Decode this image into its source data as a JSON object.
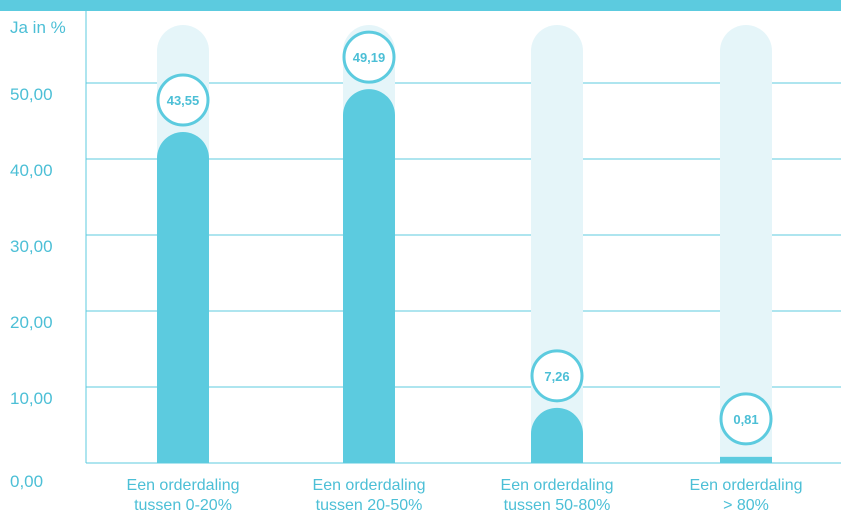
{
  "chart_data": {
    "type": "bar",
    "categories": [
      [
        "Een orderdaling",
        "tussen 0-20%"
      ],
      [
        "Een orderdaling",
        "tussen 20-50%"
      ],
      [
        "Een orderdaling",
        "tussen 50-80%"
      ],
      [
        "Een orderdaling",
        "> 80%"
      ]
    ],
    "values": [
      43.55,
      49.19,
      7.26,
      0.81
    ],
    "value_labels": [
      "43,55",
      "49,19",
      "7,26",
      "0,81"
    ],
    "ylabel": "Ja in %",
    "yticks": [
      "0,00",
      "10,00",
      "20,00",
      "30,00",
      "40,00",
      "50,00"
    ],
    "ylim": [
      0,
      60
    ],
    "grid": true,
    "colors": {
      "bar": "#5ccbdf",
      "track": "#e5f5f9",
      "grid": "#5ccbdf",
      "text": "#4cbfd6",
      "header": "#5ccbdf"
    }
  }
}
